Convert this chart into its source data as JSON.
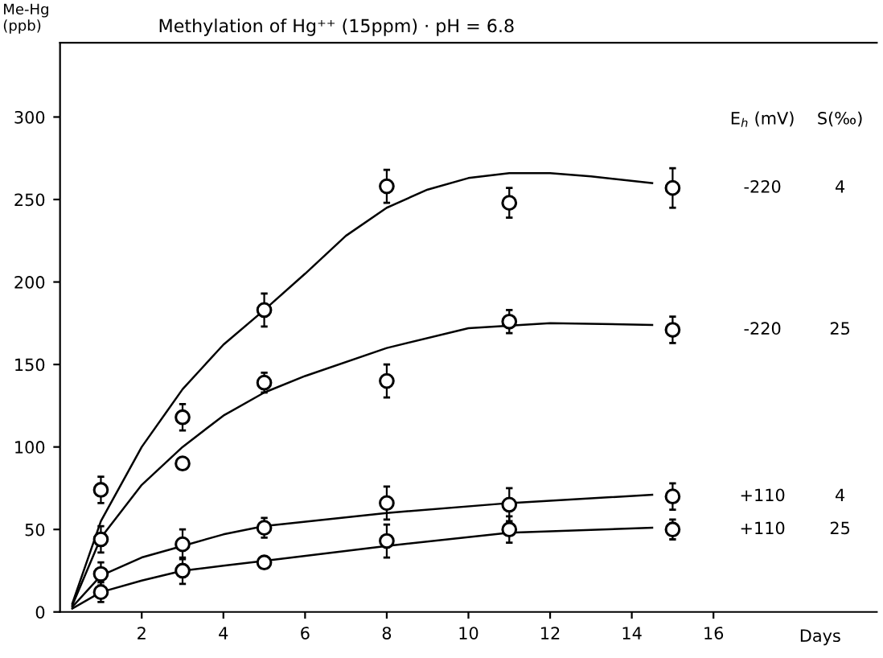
{
  "chart_data": {
    "type": "scatter",
    "title": "Methylation of Hg⁺⁺ (15ppm) · pH = 6.8",
    "ylabel": "Me-Hg\n(ppb)",
    "xlabel": "Days",
    "xlim": [
      0,
      20
    ],
    "ylim": [
      0,
      345
    ],
    "xticks": [
      2,
      4,
      6,
      8,
      10,
      12,
      14,
      16
    ],
    "yticks": [
      0,
      50,
      100,
      150,
      200,
      250,
      300
    ],
    "grid": false,
    "legend": false,
    "series": [
      {
        "color": "#000000",
        "marker": "circle",
        "x": [
          1,
          3,
          5,
          8,
          11,
          15
        ],
        "values": [
          74,
          118,
          183,
          258,
          248,
          257
        ],
        "errors": [
          8,
          8,
          10,
          10,
          9,
          12
        ]
      },
      {
        "color": "#000000",
        "marker": "circle",
        "x": [
          1,
          3,
          5,
          8,
          11,
          15
        ],
        "values": [
          44,
          90,
          139,
          140,
          176,
          171
        ],
        "errors": [
          8,
          null,
          6,
          10,
          7,
          8
        ]
      },
      {
        "color": "#000000",
        "marker": "circle",
        "x": [
          1,
          3,
          5,
          8,
          11,
          15
        ],
        "values": [
          23,
          41,
          51,
          66,
          65,
          70
        ],
        "errors": [
          7,
          9,
          6,
          10,
          10,
          8
        ]
      },
      {
        "color": "#000000",
        "marker": "circle",
        "x": [
          1,
          3,
          5,
          8,
          11,
          15
        ],
        "values": [
          12,
          25,
          30,
          43,
          50,
          50
        ],
        "errors": [
          6,
          8,
          null,
          10,
          8,
          6
        ]
      },
      {
        "type": "line",
        "color": "#000000",
        "marker": "none",
        "line_style": "solid",
        "x": [
          0.3,
          1,
          2,
          3,
          4,
          5,
          6,
          7,
          8,
          9,
          10,
          11,
          12,
          13,
          14.5
        ],
        "values": [
          5,
          55,
          100,
          135,
          162,
          183,
          205,
          228,
          245,
          256,
          263,
          266,
          266,
          264,
          260
        ]
      },
      {
        "type": "line",
        "color": "#000000",
        "marker": "none",
        "line_style": "solid",
        "x": [
          0.3,
          1,
          2,
          3,
          4,
          5,
          6,
          8,
          10,
          12,
          14.5
        ],
        "values": [
          4,
          45,
          77,
          100,
          119,
          133,
          143,
          160,
          172,
          175,
          174
        ]
      },
      {
        "type": "line",
        "color": "#000000",
        "marker": "none",
        "line_style": "solid",
        "x": [
          0.3,
          1,
          2,
          3,
          4,
          5,
          8,
          11,
          14.5
        ],
        "values": [
          3,
          22,
          33,
          40,
          47,
          52,
          60,
          66,
          71
        ]
      },
      {
        "type": "line",
        "color": "#000000",
        "marker": "none",
        "line_style": "solid",
        "x": [
          0.3,
          1,
          2,
          3,
          4,
          5,
          8,
          11,
          14.5
        ],
        "values": [
          2,
          12,
          19,
          25,
          28,
          31,
          40,
          48,
          51
        ]
      }
    ],
    "annotations": [
      "E$_{h}$ (mV)",
      "S(‰)",
      "-220",
      "4",
      "-220",
      "25",
      "+110",
      "4",
      "+110",
      "25"
    ]
  }
}
